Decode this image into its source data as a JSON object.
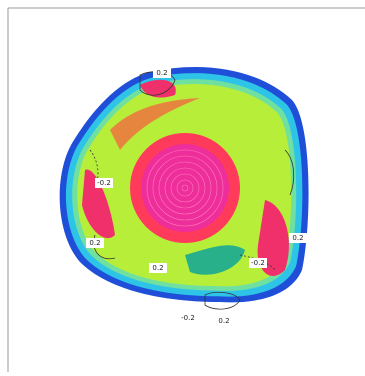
{
  "contour_labels": [
    "0.2",
    "-0.2",
    "0.2",
    "0.2",
    "-0.2",
    "0.2",
    "-0.2",
    "0.2"
  ]
}
